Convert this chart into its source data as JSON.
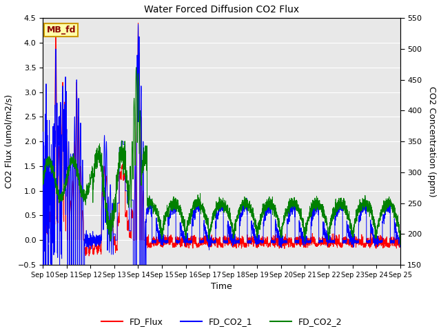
{
  "title": "Water Forced Diffusion CO2 Flux",
  "xlabel": "Time",
  "ylabel_left": "CO2 Flux (umol/m2/s)",
  "ylabel_right": "CO2 Concentration (ppm)",
  "ylim_left": [
    -0.5,
    4.5
  ],
  "ylim_right": [
    150,
    550
  ],
  "label_box_text": "MB_fd",
  "legend_labels": [
    "FD_Flux",
    "FD_CO2_1",
    "FD_CO2_2"
  ],
  "colors": [
    "red",
    "blue",
    "green"
  ],
  "background_color": "#e8e8e8",
  "x_tick_labels": [
    "Sep 10",
    "Sep 11",
    "Sep 12",
    "Sep 13",
    "Sep 14",
    "Sep 15",
    "Sep 16",
    "Sep 17",
    "Sep 18",
    "Sep 19",
    "Sep 20",
    "Sep 21",
    "Sep 22",
    "Sep 23",
    "Sep 24",
    "Sep 25"
  ],
  "x_tick_positions": [
    0,
    24,
    48,
    72,
    96,
    120,
    144,
    168,
    192,
    216,
    240,
    264,
    288,
    312,
    336,
    360
  ],
  "total_points": 3600
}
